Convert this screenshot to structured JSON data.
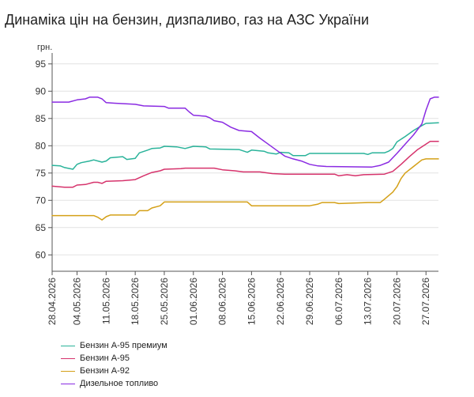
{
  "title": "Динаміка цін на бензин, дизпаливо, газ на АЗС України",
  "chart_data": {
    "type": "line",
    "ylabel": "грн.",
    "ylim": [
      57,
      97
    ],
    "yticks": [
      60,
      65,
      70,
      75,
      80,
      85,
      90,
      95
    ],
    "x_start": "2026-04-28",
    "x_end": "2026-07-30",
    "xtick_labels": [
      "28.04.2026",
      "04.05.2026",
      "11.05.2026",
      "18.05.2026",
      "25.05.2026",
      "01.06.2026",
      "08.06.2026",
      "15.06.2026",
      "22.06.2026",
      "29.06.2026",
      "06.07.2026",
      "13.07.2026",
      "20.07.2026",
      "27.07.2026"
    ],
    "series": [
      {
        "name": "Бензин А-95 премиум",
        "color": "#2ab39a",
        "points": [
          [
            "2026-04-28",
            76.4
          ],
          [
            "2026-04-30",
            76.3
          ],
          [
            "2026-05-01",
            76.0
          ],
          [
            "2026-05-03",
            75.7
          ],
          [
            "2026-05-04",
            76.6
          ],
          [
            "2026-05-05",
            76.9
          ],
          [
            "2026-05-07",
            77.2
          ],
          [
            "2026-05-08",
            77.4
          ],
          [
            "2026-05-10",
            77.0
          ],
          [
            "2026-05-11",
            77.2
          ],
          [
            "2026-05-12",
            77.8
          ],
          [
            "2026-05-15",
            78.0
          ],
          [
            "2026-05-16",
            77.5
          ],
          [
            "2026-05-18",
            77.7
          ],
          [
            "2026-05-19",
            78.7
          ],
          [
            "2026-05-21",
            79.2
          ],
          [
            "2026-05-22",
            79.5
          ],
          [
            "2026-05-24",
            79.6
          ],
          [
            "2026-05-25",
            79.9
          ],
          [
            "2026-05-28",
            79.8
          ],
          [
            "2026-05-30",
            79.5
          ],
          [
            "2026-06-01",
            79.9
          ],
          [
            "2026-06-04",
            79.8
          ],
          [
            "2026-06-05",
            79.4
          ],
          [
            "2026-06-12",
            79.3
          ],
          [
            "2026-06-14",
            78.8
          ],
          [
            "2026-06-15",
            79.2
          ],
          [
            "2026-06-18",
            79.0
          ],
          [
            "2026-06-19",
            78.7
          ],
          [
            "2026-06-21",
            78.5
          ],
          [
            "2026-06-22",
            78.8
          ],
          [
            "2026-06-24",
            78.7
          ],
          [
            "2026-06-25",
            78.2
          ],
          [
            "2026-06-28",
            78.2
          ],
          [
            "2026-06-29",
            78.6
          ],
          [
            "2026-07-12",
            78.6
          ],
          [
            "2026-07-13",
            78.4
          ],
          [
            "2026-07-14",
            78.7
          ],
          [
            "2026-07-17",
            78.7
          ],
          [
            "2026-07-18",
            79.0
          ],
          [
            "2026-07-19",
            79.5
          ],
          [
            "2026-07-20",
            80.7
          ],
          [
            "2026-07-22",
            81.7
          ],
          [
            "2026-07-24",
            82.8
          ],
          [
            "2026-07-26",
            83.7
          ],
          [
            "2026-07-27",
            84.1
          ],
          [
            "2026-07-30",
            84.2
          ]
        ]
      },
      {
        "name": "Бензин А-95",
        "color": "#d6336c",
        "points": [
          [
            "2026-04-28",
            72.6
          ],
          [
            "2026-05-01",
            72.4
          ],
          [
            "2026-05-03",
            72.4
          ],
          [
            "2026-05-04",
            72.8
          ],
          [
            "2026-05-06",
            72.9
          ],
          [
            "2026-05-08",
            73.3
          ],
          [
            "2026-05-09",
            73.3
          ],
          [
            "2026-05-10",
            73.1
          ],
          [
            "2026-05-11",
            73.5
          ],
          [
            "2026-05-15",
            73.6
          ],
          [
            "2026-05-18",
            73.8
          ],
          [
            "2026-05-20",
            74.5
          ],
          [
            "2026-05-22",
            75.1
          ],
          [
            "2026-05-24",
            75.4
          ],
          [
            "2026-05-25",
            75.7
          ],
          [
            "2026-05-29",
            75.8
          ],
          [
            "2026-05-30",
            75.9
          ],
          [
            "2026-06-06",
            75.9
          ],
          [
            "2026-06-08",
            75.6
          ],
          [
            "2026-06-11",
            75.4
          ],
          [
            "2026-06-13",
            75.2
          ],
          [
            "2026-06-17",
            75.2
          ],
          [
            "2026-06-20",
            74.9
          ],
          [
            "2026-06-23",
            74.8
          ],
          [
            "2026-07-05",
            74.8
          ],
          [
            "2026-07-06",
            74.5
          ],
          [
            "2026-07-08",
            74.7
          ],
          [
            "2026-07-10",
            74.5
          ],
          [
            "2026-07-12",
            74.7
          ],
          [
            "2026-07-17",
            74.8
          ],
          [
            "2026-07-19",
            75.3
          ],
          [
            "2026-07-21",
            76.6
          ],
          [
            "2026-07-23",
            78.0
          ],
          [
            "2026-07-25",
            79.3
          ],
          [
            "2026-07-27",
            80.3
          ],
          [
            "2026-07-28",
            80.8
          ],
          [
            "2026-07-30",
            80.8
          ]
        ]
      },
      {
        "name": "Бензин А-92",
        "color": "#d4a017",
        "points": [
          [
            "2026-04-28",
            67.2
          ],
          [
            "2026-05-08",
            67.2
          ],
          [
            "2026-05-09",
            66.9
          ],
          [
            "2026-05-10",
            66.4
          ],
          [
            "2026-05-11",
            67.0
          ],
          [
            "2026-05-12",
            67.3
          ],
          [
            "2026-05-18",
            67.3
          ],
          [
            "2026-05-19",
            68.1
          ],
          [
            "2026-05-21",
            68.1
          ],
          [
            "2026-05-22",
            68.6
          ],
          [
            "2026-05-24",
            69.0
          ],
          [
            "2026-05-25",
            69.7
          ],
          [
            "2026-06-14",
            69.7
          ],
          [
            "2026-06-15",
            69.0
          ],
          [
            "2026-06-29",
            69.0
          ],
          [
            "2026-07-01",
            69.3
          ],
          [
            "2026-07-02",
            69.6
          ],
          [
            "2026-07-05",
            69.6
          ],
          [
            "2026-07-06",
            69.4
          ],
          [
            "2026-07-13",
            69.6
          ],
          [
            "2026-07-16",
            69.6
          ],
          [
            "2026-07-17",
            70.2
          ],
          [
            "2026-07-19",
            71.5
          ],
          [
            "2026-07-20",
            72.5
          ],
          [
            "2026-07-21",
            74.0
          ],
          [
            "2026-07-22",
            75.0
          ],
          [
            "2026-07-24",
            76.2
          ],
          [
            "2026-07-26",
            77.4
          ],
          [
            "2026-07-27",
            77.6
          ],
          [
            "2026-07-30",
            77.6
          ]
        ]
      },
      {
        "name": "Дизельное топливо",
        "color": "#8a2be2",
        "points": [
          [
            "2026-04-28",
            88.0
          ],
          [
            "2026-05-02",
            88.0
          ],
          [
            "2026-05-04",
            88.4
          ],
          [
            "2026-05-06",
            88.6
          ],
          [
            "2026-05-07",
            88.9
          ],
          [
            "2026-05-09",
            88.9
          ],
          [
            "2026-05-10",
            88.6
          ],
          [
            "2026-05-11",
            87.9
          ],
          [
            "2026-05-13",
            87.8
          ],
          [
            "2026-05-18",
            87.6
          ],
          [
            "2026-05-20",
            87.3
          ],
          [
            "2026-05-25",
            87.2
          ],
          [
            "2026-05-26",
            86.9
          ],
          [
            "2026-05-30",
            86.9
          ],
          [
            "2026-05-31",
            86.2
          ],
          [
            "2026-06-01",
            85.6
          ],
          [
            "2026-06-04",
            85.4
          ],
          [
            "2026-06-05",
            85.1
          ],
          [
            "2026-06-06",
            84.6
          ],
          [
            "2026-06-08",
            84.3
          ],
          [
            "2026-06-10",
            83.4
          ],
          [
            "2026-06-12",
            82.8
          ],
          [
            "2026-06-15",
            82.6
          ],
          [
            "2026-06-17",
            81.4
          ],
          [
            "2026-06-19",
            80.3
          ],
          [
            "2026-06-21",
            79.2
          ],
          [
            "2026-06-23",
            78.1
          ],
          [
            "2026-06-25",
            77.6
          ],
          [
            "2026-06-27",
            77.2
          ],
          [
            "2026-06-29",
            76.6
          ],
          [
            "2026-07-01",
            76.3
          ],
          [
            "2026-07-03",
            76.2
          ],
          [
            "2026-07-14",
            76.1
          ],
          [
            "2026-07-16",
            76.4
          ],
          [
            "2026-07-18",
            77.0
          ],
          [
            "2026-07-20",
            78.6
          ],
          [
            "2026-07-22",
            80.3
          ],
          [
            "2026-07-24",
            82.0
          ],
          [
            "2026-07-26",
            84.0
          ],
          [
            "2026-07-27",
            86.5
          ],
          [
            "2026-07-28",
            88.6
          ],
          [
            "2026-07-29",
            88.9
          ],
          [
            "2026-07-30",
            88.9
          ]
        ]
      }
    ],
    "legend": {
      "position": "bottom-left"
    },
    "grid": {
      "horizontal": true,
      "vertical": false
    }
  }
}
